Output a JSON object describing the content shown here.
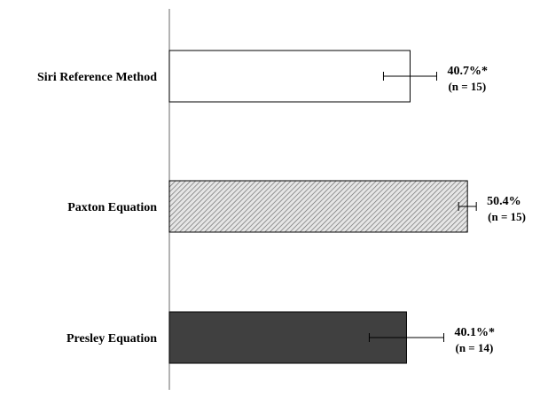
{
  "chart_data": {
    "type": "bar",
    "orientation": "horizontal",
    "title": "",
    "xlabel": "",
    "ylabel": "",
    "categories": [
      "Siri Reference Method",
      "Paxton Equation",
      "Presley Equation"
    ],
    "values": [
      40.7,
      50.4,
      40.1
    ],
    "error": [
      4.5,
      1.5,
      6.3
    ],
    "value_labels": [
      "40.7%*",
      "50.4%",
      "40.1%*"
    ],
    "n_labels": [
      "(n = 15)",
      "(n = 15)",
      "(n = 14)"
    ],
    "fills": [
      "#ffffff",
      "hatched",
      "#404040"
    ],
    "xlim": [
      0,
      55
    ],
    "grid": false,
    "legend": "none",
    "value_axis_visible": false
  }
}
